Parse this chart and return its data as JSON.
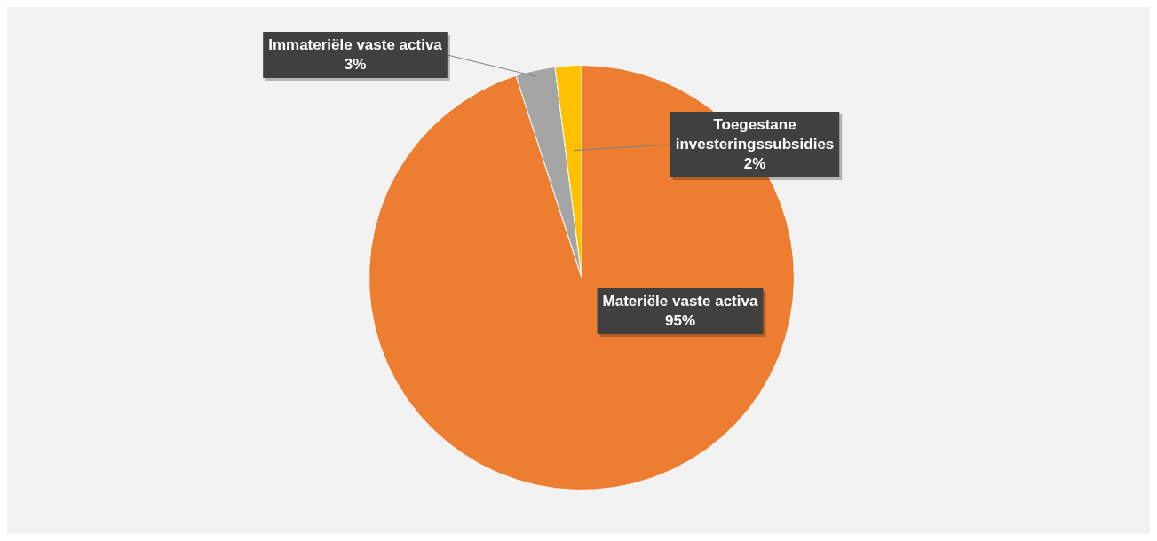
{
  "chart_data": {
    "type": "pie",
    "categories": [
      "Materiële vaste activa",
      "Immateriële vaste activa",
      "Toegestane investeringssubsidies"
    ],
    "values": [
      95,
      3,
      2
    ],
    "colors": [
      "#ed7d31",
      "#a5a5a5",
      "#ffc000"
    ],
    "value_labels": [
      "95%",
      "3%",
      "2%"
    ],
    "legend": false
  }
}
